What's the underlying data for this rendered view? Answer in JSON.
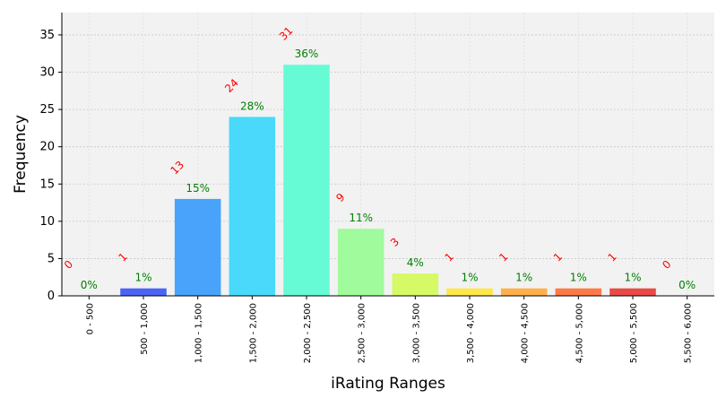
{
  "chart_data": {
    "type": "bar",
    "title": "",
    "xlabel": "iRating Ranges",
    "ylabel": "Frequency",
    "ylim": [
      0,
      38
    ],
    "yticks": [
      0,
      5,
      10,
      15,
      20,
      25,
      30,
      35
    ],
    "grid": true,
    "categories": [
      "0 - 500",
      "500 - 1,000",
      "1,000 - 1,500",
      "1,500 - 2,000",
      "2,000 - 2,500",
      "2,500 - 3,000",
      "3,000 - 3,500",
      "3,500 - 4,000",
      "4,000 - 4,500",
      "4,500 - 5,000",
      "5,000 - 5,500",
      "5,500 - 6,000"
    ],
    "values": [
      0,
      1,
      13,
      24,
      31,
      9,
      3,
      1,
      1,
      1,
      1,
      0
    ],
    "percent_labels": [
      "0%",
      "1%",
      "15%",
      "28%",
      "36%",
      "11%",
      "4%",
      "1%",
      "1%",
      "1%",
      "1%",
      "0%"
    ],
    "colors": [
      "#3a2fe6",
      "#4a63f7",
      "#4aa3fb",
      "#4ad9fa",
      "#66fbd4",
      "#a0fb9c",
      "#d6fa65",
      "#fde74b",
      "#ffaf4a",
      "#ff7a46",
      "#e84a44",
      "#c0232a"
    ],
    "count_label_color": "#ff0000",
    "percent_label_color": "#008000",
    "plot_background": "#f2f2f2"
  }
}
